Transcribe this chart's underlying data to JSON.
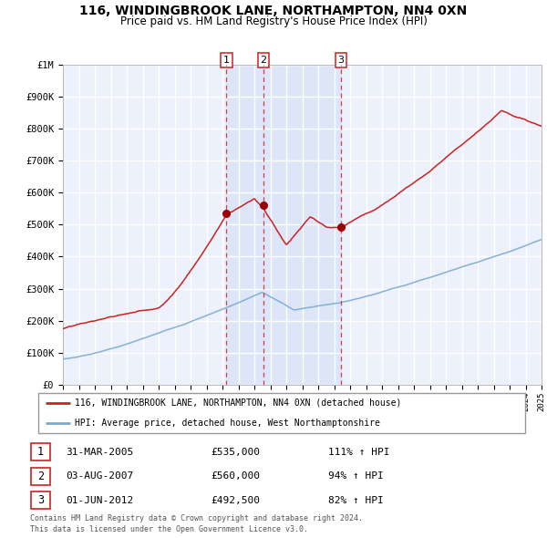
{
  "title": "116, WINDINGBROOK LANE, NORTHAMPTON, NN4 0XN",
  "subtitle": "Price paid vs. HM Land Registry's House Price Index (HPI)",
  "plot_bg_color": "#edf1fb",
  "grid_color": "#ffffff",
  "red_line_color": "#cc2222",
  "blue_line_color": "#7aaad0",
  "sale_marker_color": "#990000",
  "vline_color": "#cc4444",
  "vline_shade_color": "#dde5f8",
  "ylim": [
    0,
    1000000
  ],
  "ytick_labels": [
    "£0",
    "£100K",
    "£200K",
    "£300K",
    "£400K",
    "£500K",
    "£600K",
    "£700K",
    "£800K",
    "£900K",
    "£1M"
  ],
  "ytick_values": [
    0,
    100000,
    200000,
    300000,
    400000,
    500000,
    600000,
    700000,
    800000,
    900000,
    1000000
  ],
  "x_start_year": 1995,
  "x_end_year": 2025,
  "sale_events": [
    {
      "label": "1",
      "date_str": "31-MAR-2005",
      "year": 2005.25,
      "price": 535000,
      "pct": "111%",
      "direction": "↑"
    },
    {
      "label": "2",
      "date_str": "03-AUG-2007",
      "year": 2007.58,
      "price": 560000,
      "pct": "94%",
      "direction": "↑"
    },
    {
      "label": "3",
      "date_str": "01-JUN-2012",
      "year": 2012.42,
      "price": 492500,
      "pct": "82%",
      "direction": "↑"
    }
  ],
  "legend_line1": "116, WINDINGBROOK LANE, NORTHAMPTON, NN4 0XN (detached house)",
  "legend_line2": "HPI: Average price, detached house, West Northamptonshire",
  "footer_line1": "Contains HM Land Registry data © Crown copyright and database right 2024.",
  "footer_line2": "This data is licensed under the Open Government Licence v3.0."
}
